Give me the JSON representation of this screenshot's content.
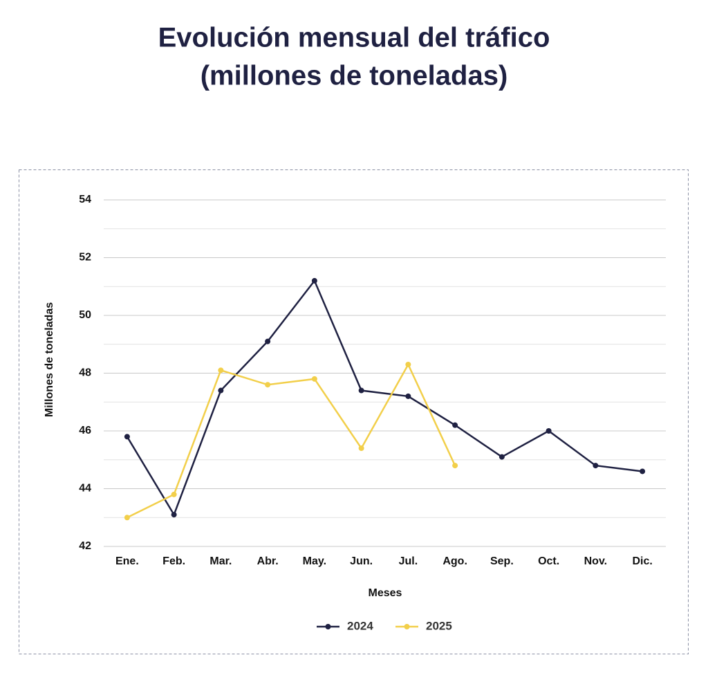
{
  "chart_data": {
    "type": "line",
    "title": [
      "Evolución mensual del tráfico",
      "(millones de toneladas)"
    ],
    "xlabel": "Meses",
    "ylabel": "Millones de toneladas",
    "categories": [
      "Ene.",
      "Feb.",
      "Mar.",
      "Abr.",
      "May.",
      "Jun.",
      "Jul.",
      "Ago.",
      "Sep.",
      "Oct.",
      "Nov.",
      "Dic."
    ],
    "series": [
      {
        "name": "2024",
        "color": "#1f2142",
        "values": [
          45.8,
          43.1,
          47.4,
          49.1,
          51.2,
          47.4,
          47.2,
          46.2,
          45.1,
          46.0,
          44.8,
          44.6
        ]
      },
      {
        "name": "2025",
        "color": "#f2cf4a",
        "values": [
          43.0,
          43.8,
          48.1,
          47.6,
          47.8,
          45.4,
          48.3,
          44.8,
          null,
          null,
          null,
          null
        ]
      }
    ],
    "ylim": [
      42,
      54
    ],
    "yticks": [
      42,
      44,
      46,
      48,
      50,
      52,
      54
    ],
    "minor_yticks": [
      43,
      45,
      47,
      49,
      51,
      53
    ],
    "grid": true,
    "legend": "bottom"
  }
}
